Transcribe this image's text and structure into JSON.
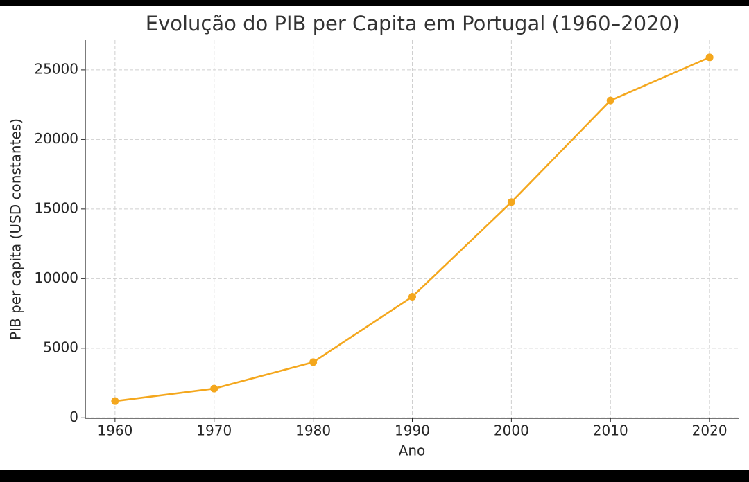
{
  "chart_data": {
    "type": "line",
    "title": "Evolução do PIB per Capita em Portugal (1960–2020)",
    "x_label": "Ano",
    "y_label": "PIB per capita (USD constantes)",
    "x": [
      1960,
      1970,
      1980,
      1990,
      2000,
      2010,
      2020
    ],
    "series": [
      {
        "values": [
          1200,
          2100,
          4000,
          8700,
          15500,
          22800,
          25900
        ],
        "color": "#f4a71d"
      }
    ],
    "xlim": [
      1957,
      2023
    ],
    "xticks": [
      1960,
      1970,
      1980,
      1990,
      2000,
      2010,
      2020
    ],
    "ylim": [
      -35,
      27135
    ],
    "yticks": [
      0,
      5000,
      10000,
      15000,
      20000,
      25000
    ],
    "grid": true
  }
}
